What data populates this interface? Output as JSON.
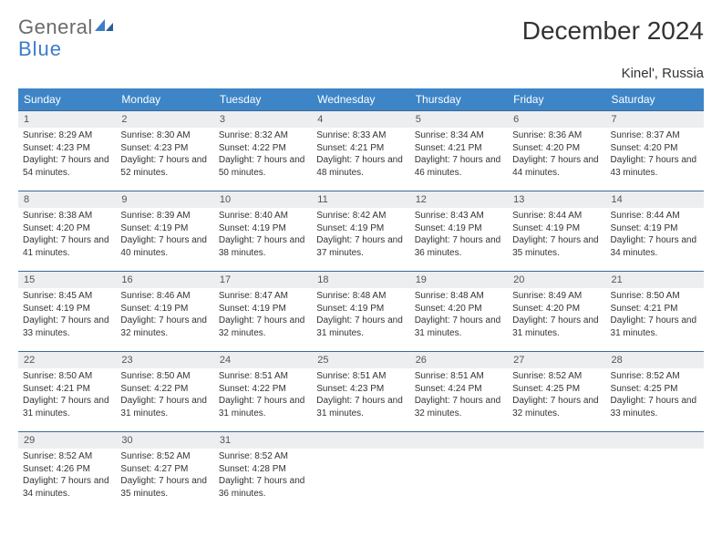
{
  "logo": {
    "text1": "General",
    "text2": "Blue"
  },
  "title": "December 2024",
  "location": "Kinel', Russia",
  "colors": {
    "header_bg": "#3d85c6",
    "header_fg": "#ffffff",
    "daynum_bg": "#eceef0",
    "rule": "#3d6a9a",
    "logo_gray": "#6b6b6b",
    "logo_blue": "#3d7cc9"
  },
  "weekdays": [
    "Sunday",
    "Monday",
    "Tuesday",
    "Wednesday",
    "Thursday",
    "Friday",
    "Saturday"
  ],
  "weeks": [
    [
      {
        "n": "1",
        "sr": "8:29 AM",
        "ss": "4:23 PM",
        "dl": "7 hours and 54 minutes."
      },
      {
        "n": "2",
        "sr": "8:30 AM",
        "ss": "4:23 PM",
        "dl": "7 hours and 52 minutes."
      },
      {
        "n": "3",
        "sr": "8:32 AM",
        "ss": "4:22 PM",
        "dl": "7 hours and 50 minutes."
      },
      {
        "n": "4",
        "sr": "8:33 AM",
        "ss": "4:21 PM",
        "dl": "7 hours and 48 minutes."
      },
      {
        "n": "5",
        "sr": "8:34 AM",
        "ss": "4:21 PM",
        "dl": "7 hours and 46 minutes."
      },
      {
        "n": "6",
        "sr": "8:36 AM",
        "ss": "4:20 PM",
        "dl": "7 hours and 44 minutes."
      },
      {
        "n": "7",
        "sr": "8:37 AM",
        "ss": "4:20 PM",
        "dl": "7 hours and 43 minutes."
      }
    ],
    [
      {
        "n": "8",
        "sr": "8:38 AM",
        "ss": "4:20 PM",
        "dl": "7 hours and 41 minutes."
      },
      {
        "n": "9",
        "sr": "8:39 AM",
        "ss": "4:19 PM",
        "dl": "7 hours and 40 minutes."
      },
      {
        "n": "10",
        "sr": "8:40 AM",
        "ss": "4:19 PM",
        "dl": "7 hours and 38 minutes."
      },
      {
        "n": "11",
        "sr": "8:42 AM",
        "ss": "4:19 PM",
        "dl": "7 hours and 37 minutes."
      },
      {
        "n": "12",
        "sr": "8:43 AM",
        "ss": "4:19 PM",
        "dl": "7 hours and 36 minutes."
      },
      {
        "n": "13",
        "sr": "8:44 AM",
        "ss": "4:19 PM",
        "dl": "7 hours and 35 minutes."
      },
      {
        "n": "14",
        "sr": "8:44 AM",
        "ss": "4:19 PM",
        "dl": "7 hours and 34 minutes."
      }
    ],
    [
      {
        "n": "15",
        "sr": "8:45 AM",
        "ss": "4:19 PM",
        "dl": "7 hours and 33 minutes."
      },
      {
        "n": "16",
        "sr": "8:46 AM",
        "ss": "4:19 PM",
        "dl": "7 hours and 32 minutes."
      },
      {
        "n": "17",
        "sr": "8:47 AM",
        "ss": "4:19 PM",
        "dl": "7 hours and 32 minutes."
      },
      {
        "n": "18",
        "sr": "8:48 AM",
        "ss": "4:19 PM",
        "dl": "7 hours and 31 minutes."
      },
      {
        "n": "19",
        "sr": "8:48 AM",
        "ss": "4:20 PM",
        "dl": "7 hours and 31 minutes."
      },
      {
        "n": "20",
        "sr": "8:49 AM",
        "ss": "4:20 PM",
        "dl": "7 hours and 31 minutes."
      },
      {
        "n": "21",
        "sr": "8:50 AM",
        "ss": "4:21 PM",
        "dl": "7 hours and 31 minutes."
      }
    ],
    [
      {
        "n": "22",
        "sr": "8:50 AM",
        "ss": "4:21 PM",
        "dl": "7 hours and 31 minutes."
      },
      {
        "n": "23",
        "sr": "8:50 AM",
        "ss": "4:22 PM",
        "dl": "7 hours and 31 minutes."
      },
      {
        "n": "24",
        "sr": "8:51 AM",
        "ss": "4:22 PM",
        "dl": "7 hours and 31 minutes."
      },
      {
        "n": "25",
        "sr": "8:51 AM",
        "ss": "4:23 PM",
        "dl": "7 hours and 31 minutes."
      },
      {
        "n": "26",
        "sr": "8:51 AM",
        "ss": "4:24 PM",
        "dl": "7 hours and 32 minutes."
      },
      {
        "n": "27",
        "sr": "8:52 AM",
        "ss": "4:25 PM",
        "dl": "7 hours and 32 minutes."
      },
      {
        "n": "28",
        "sr": "8:52 AM",
        "ss": "4:25 PM",
        "dl": "7 hours and 33 minutes."
      }
    ],
    [
      {
        "n": "29",
        "sr": "8:52 AM",
        "ss": "4:26 PM",
        "dl": "7 hours and 34 minutes."
      },
      {
        "n": "30",
        "sr": "8:52 AM",
        "ss": "4:27 PM",
        "dl": "7 hours and 35 minutes."
      },
      {
        "n": "31",
        "sr": "8:52 AM",
        "ss": "4:28 PM",
        "dl": "7 hours and 36 minutes."
      },
      {
        "empty": true
      },
      {
        "empty": true
      },
      {
        "empty": true
      },
      {
        "empty": true
      }
    ]
  ],
  "labels": {
    "sunrise": "Sunrise:",
    "sunset": "Sunset:",
    "daylight": "Daylight:"
  }
}
